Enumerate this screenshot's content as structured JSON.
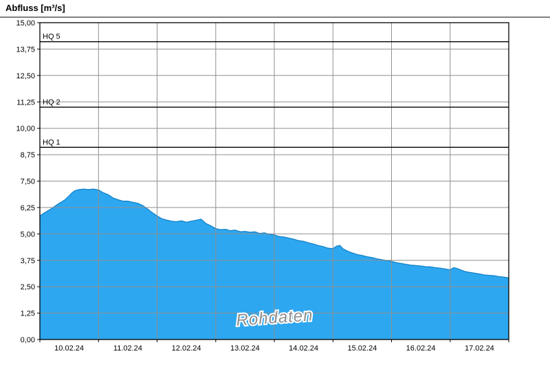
{
  "window": {
    "background": "#ffffff"
  },
  "chart_data": {
    "type": "area",
    "title": "Abfluss [m³/s]",
    "watermark": "Rohdaten",
    "ylabel": "Abfluss [m³/s]",
    "ylim": [
      0,
      15
    ],
    "ytick_step": 1.25,
    "ytick_labels": [
      "0,00",
      "1,25",
      "2,50",
      "3,75",
      "5,00",
      "6,25",
      "7,50",
      "8,75",
      "10,00",
      "11,25",
      "12,50",
      "13,75",
      "15,00"
    ],
    "x_days": [
      "10.02.24",
      "11.02.24",
      "12.02.24",
      "13.02.24",
      "14.02.24",
      "15.02.24",
      "16.02.24",
      "17.02.24"
    ],
    "x_range_days": 8,
    "grid": true,
    "legend": "none",
    "thresholds": [
      {
        "label": "HQ 5",
        "value": 14.1
      },
      {
        "label": "HQ 2",
        "value": 11.0
      },
      {
        "label": "HQ 1",
        "value": 9.1
      }
    ],
    "colors": {
      "grid": "#8f8f8f",
      "axis": "#000000",
      "threshold": "#000000",
      "watermark": "#8f8f8f",
      "series_fill": "#2da7f0",
      "series_stroke": "#1482c8"
    },
    "series": [
      {
        "name": "Rohdaten",
        "type": "area",
        "fill": "#2da7f0",
        "stroke": "#1482c8",
        "x": [
          0,
          0.08,
          0.17,
          0.25,
          0.33,
          0.42,
          0.5,
          0.55,
          0.6,
          0.67,
          0.75,
          0.83,
          0.92,
          1.0,
          1.08,
          1.17,
          1.25,
          1.33,
          1.42,
          1.5,
          1.58,
          1.67,
          1.75,
          1.83,
          1.92,
          2.0,
          2.08,
          2.17,
          2.25,
          2.33,
          2.42,
          2.5,
          2.58,
          2.67,
          2.75,
          2.83,
          2.92,
          3.0,
          3.08,
          3.17,
          3.25,
          3.33,
          3.42,
          3.5,
          3.58,
          3.67,
          3.75,
          3.83,
          3.92,
          4.0,
          4.08,
          4.17,
          4.25,
          4.33,
          4.42,
          4.5,
          4.58,
          4.67,
          4.75,
          4.83,
          4.92,
          5.0,
          5.06,
          5.12,
          5.17,
          5.25,
          5.33,
          5.42,
          5.5,
          5.58,
          5.67,
          5.75,
          5.83,
          5.92,
          6.0,
          6.08,
          6.17,
          6.25,
          6.33,
          6.42,
          6.5,
          6.58,
          6.67,
          6.75,
          6.83,
          6.92,
          7.0,
          7.06,
          7.12,
          7.25,
          7.33,
          7.42,
          7.5,
          7.58,
          7.67,
          7.75,
          7.83,
          7.92,
          8.0
        ],
        "values": [
          5.85,
          6.0,
          6.15,
          6.3,
          6.45,
          6.6,
          6.8,
          6.95,
          7.05,
          7.1,
          7.12,
          7.1,
          7.12,
          7.08,
          6.95,
          6.85,
          6.7,
          6.62,
          6.55,
          6.55,
          6.5,
          6.45,
          6.35,
          6.2,
          6.0,
          5.85,
          5.72,
          5.65,
          5.6,
          5.58,
          5.62,
          5.55,
          5.6,
          5.65,
          5.7,
          5.5,
          5.38,
          5.25,
          5.2,
          5.22,
          5.15,
          5.18,
          5.1,
          5.12,
          5.08,
          5.1,
          5.02,
          5.05,
          4.98,
          4.95,
          4.88,
          4.85,
          4.8,
          4.75,
          4.68,
          4.65,
          4.58,
          4.52,
          4.45,
          4.4,
          4.32,
          4.3,
          4.42,
          4.45,
          4.3,
          4.18,
          4.1,
          4.02,
          3.98,
          3.92,
          3.88,
          3.82,
          3.78,
          3.74,
          3.7,
          3.64,
          3.6,
          3.56,
          3.52,
          3.5,
          3.48,
          3.45,
          3.44,
          3.4,
          3.38,
          3.34,
          3.3,
          3.4,
          3.36,
          3.22,
          3.18,
          3.14,
          3.1,
          3.06,
          3.04,
          3.02,
          2.98,
          2.95,
          2.92
        ]
      }
    ]
  }
}
